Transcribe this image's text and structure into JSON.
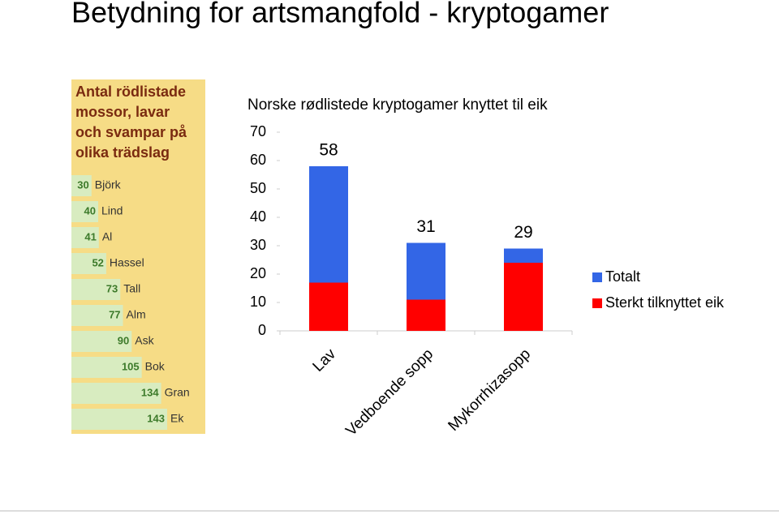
{
  "title": "Betydning for artsmangfold - kryptogamer",
  "chart_data": [
    {
      "type": "bar",
      "orientation": "horizontal",
      "title": "Antal rödlistade mossor, lavar och svampar på olika trädslag",
      "categories": [
        "Björk",
        "Lind",
        "Al",
        "Hassel",
        "Tall",
        "Alm",
        "Ask",
        "Bok",
        "Gran",
        "Ek"
      ],
      "values": [
        30,
        40,
        41,
        52,
        73,
        77,
        90,
        105,
        134,
        143
      ],
      "color": "#d8ecc0",
      "background": "#f6dc86"
    },
    {
      "type": "bar",
      "barmode": "overlay",
      "title": "Norske rødlistede kryptogamer knyttet til eik",
      "categories": [
        "Lav",
        "Vedboende sopp",
        "Mykorrhizasopp"
      ],
      "series": [
        {
          "name": "Totalt",
          "color": "#3366e6",
          "values": [
            58,
            31,
            29
          ],
          "labels": true
        },
        {
          "name": "Sterkt tilknyttet eik",
          "color": "#ff0000",
          "values": [
            17,
            11,
            24
          ]
        }
      ],
      "ylim": [
        0,
        70
      ],
      "yticks": [
        0,
        10,
        20,
        30,
        40,
        50,
        60,
        70
      ],
      "grid": false,
      "legend": "right"
    }
  ]
}
